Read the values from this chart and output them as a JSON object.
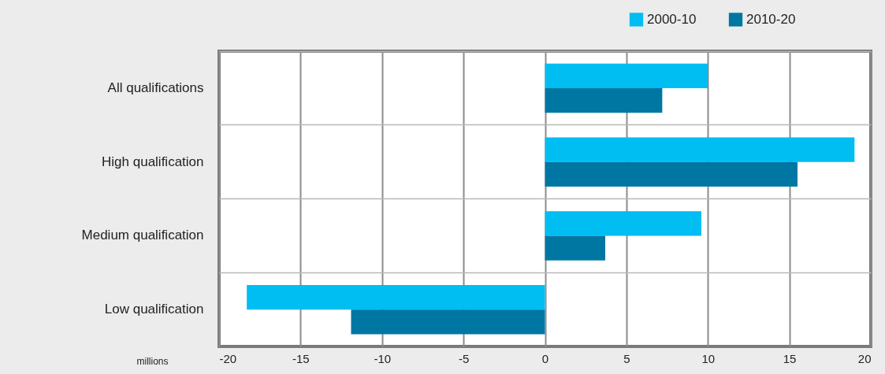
{
  "chart_data": {
    "type": "bar",
    "orientation": "horizontal",
    "categories": [
      "All qualifications",
      "High qualification",
      "Medium qualification",
      "Low qualification"
    ],
    "series": [
      {
        "name": "2000-10",
        "color": "#00bdf2",
        "values": [
          10.0,
          19.0,
          9.6,
          -18.3
        ]
      },
      {
        "name": "2010-20",
        "color": "#0077a3",
        "values": [
          7.2,
          15.5,
          3.7,
          -11.9
        ]
      }
    ],
    "xlabel": "millions",
    "xlim": [
      -20,
      20
    ],
    "xticks": [
      -20,
      -15,
      -10,
      -5,
      0,
      5,
      10,
      15,
      20
    ],
    "grid": true,
    "legend": "top right"
  }
}
